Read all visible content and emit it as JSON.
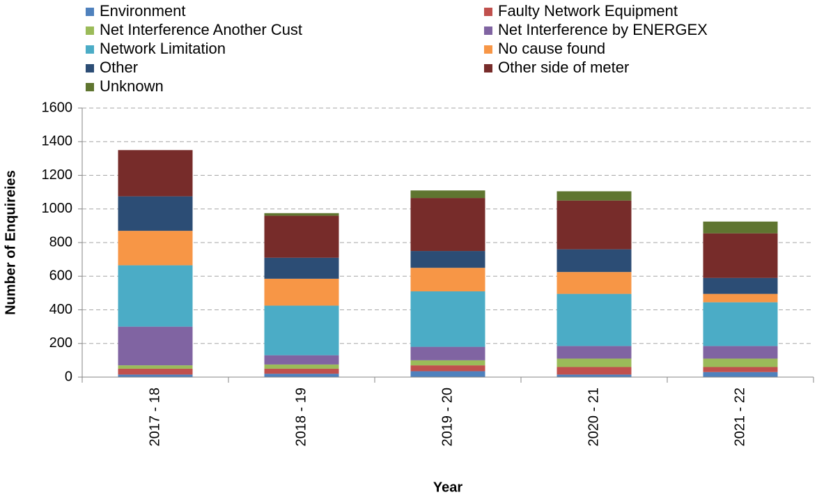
{
  "chart_data": {
    "type": "stacked_bar",
    "x_label": "Year",
    "y_label": "Number of Enquireies",
    "categories": [
      "2017 - 18",
      "2018 - 19",
      "2019 - 20",
      "2020 - 21",
      "2021 - 22"
    ],
    "series": [
      {
        "name": "Environment",
        "color": "#4f81bd",
        "values": [
          15,
          20,
          35,
          15,
          30
        ]
      },
      {
        "name": "Faulty Network Equipment",
        "color": "#c0504d",
        "values": [
          35,
          30,
          35,
          45,
          30
        ]
      },
      {
        "name": "Net Interference Another Cust",
        "color": "#9bbb59",
        "values": [
          20,
          25,
          30,
          50,
          50
        ]
      },
      {
        "name": "Net Interference by ENERGEX",
        "color": "#8064a2",
        "values": [
          230,
          55,
          80,
          75,
          75
        ]
      },
      {
        "name": "Network Limitation",
        "color": "#4bacc6",
        "values": [
          365,
          295,
          330,
          310,
          260
        ]
      },
      {
        "name": "No cause found",
        "color": "#f79646",
        "values": [
          205,
          160,
          140,
          130,
          50
        ]
      },
      {
        "name": "Other",
        "color": "#2c4d75",
        "values": [
          205,
          125,
          100,
          135,
          95
        ]
      },
      {
        "name": "Other side of meter",
        "color": "#772c2a",
        "values": [
          275,
          250,
          315,
          290,
          265
        ]
      },
      {
        "name": "Unknown",
        "color": "#5f7530",
        "values": [
          0,
          15,
          45,
          55,
          70
        ]
      }
    ],
    "ylim": [
      0,
      1600
    ],
    "yticks": [
      0,
      200,
      400,
      600,
      800,
      1000,
      1200,
      1400,
      1600
    ],
    "grid": true
  }
}
